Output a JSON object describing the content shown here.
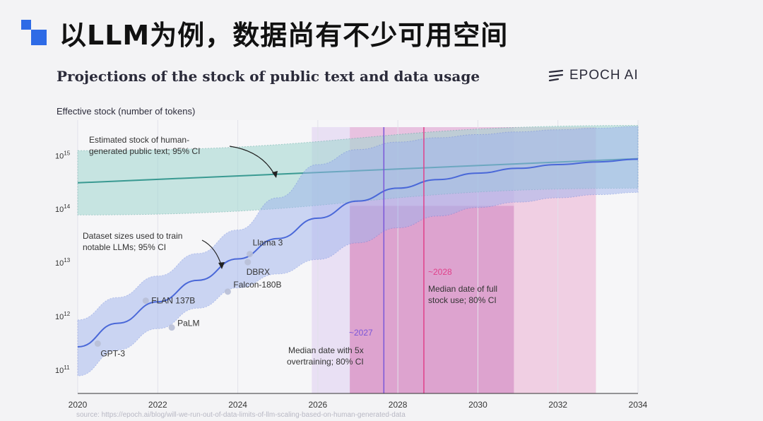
{
  "slide": {
    "title": "以LLM为例，数据尚有不少可用空间"
  },
  "header": {
    "chart_title": "Projections of the stock of public text and data usage",
    "brand": "EPOCH AI",
    "brand_icon": "epoch-logo-icon"
  },
  "source_note": "source: https://epoch.ai/blog/will-we-run-out-of-data-limits-of-llm-scaling-based-on-human-generated-data",
  "colors": {
    "stock_line": "#3a9a92",
    "stock_band": "#9fd6cf",
    "usage_line": "#4a68d8",
    "usage_band": "#9fb4ee",
    "overtrain_marker": "#7a56d8",
    "fullstock_marker": "#e0408a",
    "purple_span": "#c8a8e8",
    "pink_span": "#e890c0"
  },
  "chart_data": {
    "type": "line",
    "title": "Projections of the stock of public text and data usage",
    "ylabel": "Effective stock (number of tokens)",
    "xlabel": "",
    "x_range": [
      2020,
      2034
    ],
    "y_scale": "log",
    "y_range_log10": [
      10.55,
      15.65
    ],
    "x_ticks": [
      "2020",
      "2022",
      "2024",
      "2026",
      "2028",
      "2030",
      "2032",
      "2034"
    ],
    "y_ticks": [
      {
        "value_log10": 11,
        "base": "10",
        "exp": "11"
      },
      {
        "value_log10": 12,
        "base": "10",
        "exp": "12"
      },
      {
        "value_log10": 13,
        "base": "10",
        "exp": "13"
      },
      {
        "value_log10": 14,
        "base": "10",
        "exp": "14"
      },
      {
        "value_log10": 15,
        "base": "10",
        "exp": "15"
      }
    ],
    "series": [
      {
        "name": "Estimated stock of human-generated public text",
        "x": [
          2020,
          2034
        ],
        "y_log10": [
          14.48,
          14.93
        ],
        "band_upper_log10": [
          15.08,
          15.55
        ],
        "band_lower_log10": [
          13.88,
          14.38
        ]
      },
      {
        "name": "Dataset sizes used to train notable LLMs",
        "x": [
          2020,
          2021,
          2022,
          2023,
          2024,
          2025,
          2026,
          2027,
          2028,
          2029,
          2030,
          2031,
          2032,
          2033,
          2034
        ],
        "y_log10": [
          11.42,
          11.86,
          12.26,
          12.66,
          13.06,
          13.44,
          13.82,
          14.14,
          14.38,
          14.54,
          14.66,
          14.75,
          14.82,
          14.87,
          14.92
        ],
        "band_upper_log10": [
          11.92,
          12.34,
          12.74,
          13.16,
          13.6,
          14.2,
          14.82,
          15.1,
          15.24,
          15.32,
          15.38,
          15.43,
          15.47,
          15.5,
          15.53
        ],
        "band_lower_log10": [
          10.88,
          11.36,
          11.76,
          12.14,
          12.52,
          12.78,
          13.05,
          13.36,
          13.64,
          13.86,
          14.02,
          14.12,
          14.2,
          14.26,
          14.3
        ]
      }
    ],
    "models": [
      {
        "name": "GPT-3",
        "x": 2020.5,
        "y_log10": 11.48
      },
      {
        "name": "FLAN 137B",
        "x": 2021.7,
        "y_log10": 12.28
      },
      {
        "name": "PaLM",
        "x": 2022.35,
        "y_log10": 11.78
      },
      {
        "name": "Falcon-180B",
        "x": 2023.75,
        "y_log10": 12.45
      },
      {
        "name": "Llama 3",
        "x": 2024.3,
        "y_log10": 13.15
      },
      {
        "name": "DBRX",
        "x": 2024.25,
        "y_log10": 13.0
      }
    ],
    "spans": [
      {
        "name": "overtrain_ci",
        "x_start": 2025.85,
        "x_end": 2030.9
      },
      {
        "name": "fullstock_ci",
        "x_start": 2026.8,
        "x_end": 2032.95
      }
    ],
    "markers": [
      {
        "label": "~2027",
        "x": 2027.65
      },
      {
        "label": "~2028",
        "x": 2028.65
      }
    ],
    "annotations": {
      "stock": [
        "Estimated stock of human-",
        "generated public text; 95% CI"
      ],
      "usage": [
        "Dataset sizes used to train",
        "notable LLMs; 95% CI"
      ],
      "overtrain": [
        "Median date with 5x",
        "overtraining; 80% CI"
      ],
      "fullstock": [
        "Median date of full",
        "stock use; 80% CI"
      ]
    }
  }
}
